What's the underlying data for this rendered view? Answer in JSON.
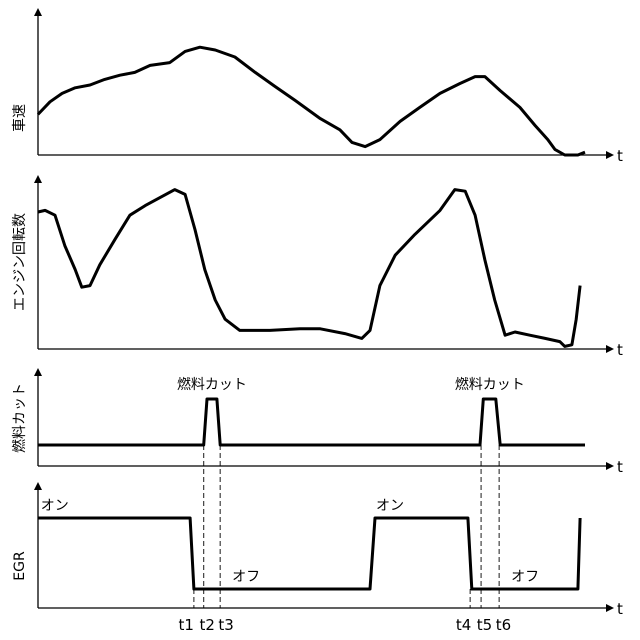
{
  "time_axis_label": "t",
  "chart_data": {
    "type": "line",
    "x_domain": [
      0,
      100
    ],
    "panels": [
      {
        "ylabel": "車速",
        "t": [
          0,
          2.2,
          4.4,
          6.8,
          9.5,
          12.2,
          15,
          17.7,
          20.5,
          24.1,
          26.9,
          29.6,
          32.4,
          36,
          39.7,
          43.3,
          47,
          51.6,
          55.2,
          57.4,
          59.8,
          62.5,
          66.2,
          69.8,
          73.5,
          77.1,
          79.9,
          81.7,
          84.5,
          88.1,
          90.9,
          93.2,
          94.5,
          96.3,
          98.7,
          100
        ],
        "v": [
          0.29,
          0.38,
          0.44,
          0.48,
          0.5,
          0.54,
          0.57,
          0.59,
          0.64,
          0.66,
          0.74,
          0.77,
          0.75,
          0.7,
          0.59,
          0.49,
          0.39,
          0.26,
          0.18,
          0.09,
          0.06,
          0.11,
          0.24,
          0.34,
          0.44,
          0.51,
          0.56,
          0.56,
          0.46,
          0.34,
          0.21,
          0.11,
          0.04,
          0,
          0,
          0.02
        ]
      },
      {
        "ylabel": "エンジン回転数",
        "t": [
          0,
          1.3,
          3.1,
          4.9,
          6.8,
          8,
          9.5,
          11.3,
          14.1,
          16.8,
          19.6,
          22.3,
          25,
          26.9,
          28.7,
          30.5,
          32.4,
          34.2,
          36.9,
          42.4,
          47.9,
          51.6,
          56.1,
          59.2,
          60.7,
          62.5,
          65.3,
          68.9,
          73.5,
          76.2,
          78.1,
          79.9,
          81.7,
          83.5,
          85.4,
          87.2,
          89.9,
          92.7,
          95.4,
          96.3,
          97.6,
          98.4,
          99.1
        ],
        "v": [
          0.85,
          0.86,
          0.83,
          0.64,
          0.49,
          0.38,
          0.39,
          0.52,
          0.68,
          0.83,
          0.89,
          0.94,
          0.99,
          0.96,
          0.74,
          0.49,
          0.3,
          0.18,
          0.11,
          0.11,
          0.12,
          0.12,
          0.09,
          0.06,
          0.11,
          0.39,
          0.58,
          0.71,
          0.86,
          0.99,
          0.98,
          0.83,
          0.55,
          0.3,
          0.08,
          0.1,
          0.08,
          0.06,
          0.04,
          0.01,
          0.02,
          0.18,
          0.39
        ]
      },
      {
        "ylabel": "燃料カット",
        "t": [
          0,
          30.3,
          30.9,
          32.7,
          33.3,
          80.8,
          81.4,
          83.7,
          84.5,
          100
        ],
        "v": [
          0,
          0,
          1,
          1,
          0,
          0,
          1,
          1,
          0,
          0
        ],
        "annotations": [
          {
            "text": "燃料カット",
            "t": 31.8
          },
          {
            "text": "燃料カット",
            "t": 82.6
          }
        ]
      },
      {
        "ylabel": "EGR",
        "t": [
          0,
          27.8,
          28.5,
          60.7,
          61.6,
          78.6,
          79.3,
          98.7,
          99.1
        ],
        "v": [
          1,
          1,
          0,
          0,
          1,
          1,
          0,
          0,
          1
        ],
        "annotations": [
          {
            "text": "オン",
            "t": 0.5,
            "level": "on"
          },
          {
            "text": "オン",
            "t": 61.8,
            "level": "on"
          },
          {
            "text": "オフ",
            "t": 35.5,
            "level": "off"
          },
          {
            "text": "オフ",
            "t": 86.5,
            "level": "off"
          }
        ]
      }
    ],
    "markers": [
      {
        "label": "t1",
        "t": 28.5
      },
      {
        "label": "t2",
        "t": 30.3
      },
      {
        "label": "t3",
        "t": 33.3
      },
      {
        "label": "t4",
        "t": 79
      },
      {
        "label": "t5",
        "t": 81
      },
      {
        "label": "t6",
        "t": 84.3
      }
    ]
  }
}
